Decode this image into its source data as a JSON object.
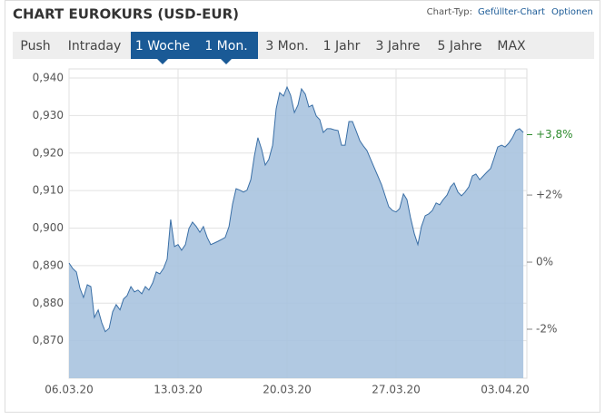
{
  "header": {
    "title": "CHART EUROKURS (USD-EUR)",
    "chart_type_label": "Chart-Typ:",
    "chart_type_link": "Gefüllter-Chart",
    "options_link": "Optionen"
  },
  "tabs": [
    {
      "label": "Push",
      "selected": false
    },
    {
      "label": "Intraday",
      "selected": false
    },
    {
      "label": "1 Woche",
      "selected": true
    },
    {
      "label": "1 Mon.",
      "selected": true
    },
    {
      "label": "3 Mon.",
      "selected": false
    },
    {
      "label": "1 Jahr",
      "selected": false
    },
    {
      "label": "3 Jahre",
      "selected": false
    },
    {
      "label": "5 Jahre",
      "selected": false
    },
    {
      "label": "MAX",
      "selected": false
    }
  ],
  "chart_data": {
    "type": "area",
    "color": "#3a6fa6",
    "fill": "#a9c3df",
    "grid": true,
    "x": [
      0,
      0.23,
      0.47,
      0.7,
      0.93,
      1.17,
      1.4,
      1.63,
      1.87,
      2.1,
      2.33,
      2.57,
      2.8,
      3.03,
      3.27,
      3.5,
      3.73,
      3.97,
      4.2,
      4.43,
      4.67,
      4.9,
      5.13,
      5.37,
      5.6,
      5.83,
      6.07,
      6.3,
      6.53,
      6.77,
      7,
      7.23,
      7.47,
      7.7,
      7.93,
      8.17,
      8.4,
      8.63,
      8.87,
      9.1,
      9.33,
      9.57,
      9.8,
      10.03,
      10.27,
      10.5,
      10.73,
      10.97,
      11.2,
      11.43,
      11.67,
      11.9,
      12.13,
      12.37,
      12.6,
      12.83,
      13.07,
      13.3,
      13.53,
      13.77,
      14,
      14.23,
      14.47,
      14.7,
      14.93,
      15.17,
      15.4,
      15.63,
      15.87,
      16.1,
      16.33,
      16.57,
      16.8,
      17.03,
      17.27,
      17.5,
      17.73,
      17.97,
      18.2,
      18.43,
      18.67,
      18.9,
      19.13,
      19.37,
      19.6,
      19.83,
      20.07,
      20.3,
      20.53,
      20.77,
      21,
      21.23,
      21.47,
      21.7,
      21.93,
      22.17,
      22.4,
      22.63,
      22.87,
      23.1,
      23.33,
      23.57,
      23.8,
      24.03,
      24.27,
      24.5,
      24.73,
      24.97,
      25.2,
      25.43,
      25.67,
      25.9,
      26.13,
      26.37,
      26.6,
      26.83,
      27.07,
      27.3,
      27.53,
      27.77,
      28,
      28.23,
      28.47,
      28.7,
      28.93,
      29.17
    ],
    "values": [
      0.8907,
      0.8893,
      0.8883,
      0.884,
      0.8815,
      0.8849,
      0.8844,
      0.8762,
      0.8782,
      0.8748,
      0.8724,
      0.8733,
      0.8777,
      0.8796,
      0.8782,
      0.8811,
      0.882,
      0.8844,
      0.883,
      0.8835,
      0.8825,
      0.8844,
      0.8835,
      0.8854,
      0.8883,
      0.8878,
      0.8893,
      0.8917,
      0.9023,
      0.8951,
      0.8956,
      0.8941,
      0.8956,
      0.8999,
      0.9016,
      0.9004,
      0.8989,
      0.9004,
      0.8975,
      0.8956,
      0.896,
      0.8965,
      0.897,
      0.8975,
      0.9004,
      0.9064,
      0.9105,
      0.9101,
      0.9096,
      0.9101,
      0.9129,
      0.9192,
      0.9241,
      0.9209,
      0.9168,
      0.9183,
      0.9221,
      0.9318,
      0.9361,
      0.9352,
      0.9376,
      0.9354,
      0.9308,
      0.9328,
      0.9371,
      0.9357,
      0.9323,
      0.9328,
      0.9299,
      0.9289,
      0.9255,
      0.9265,
      0.9265,
      0.9262,
      0.926,
      0.9221,
      0.9221,
      0.9284,
      0.9284,
      0.926,
      0.9233,
      0.9219,
      0.9207,
      0.9183,
      0.9161,
      0.9139,
      0.9115,
      0.9086,
      0.9057,
      0.9047,
      0.9043,
      0.9052,
      0.9091,
      0.9076,
      0.9028,
      0.8985,
      0.8956,
      0.9004,
      0.9033,
      0.9038,
      0.9047,
      0.9067,
      0.9062,
      0.9076,
      0.9088,
      0.911,
      0.912,
      0.9096,
      0.9086,
      0.9096,
      0.911,
      0.9139,
      0.9144,
      0.9129,
      0.9139,
      0.9149,
      0.9159,
      0.9187,
      0.9216,
      0.9221,
      0.9216,
      0.9226,
      0.9241,
      0.926,
      0.9265,
      0.9255
    ],
    "xlim": [
      0,
      29.4
    ],
    "xticks": [
      {
        "value": 0,
        "label": "06.03.20"
      },
      {
        "value": 7,
        "label": "13.03.20"
      },
      {
        "value": 14,
        "label": "20.03.20"
      },
      {
        "value": 21,
        "label": "27.03.20"
      },
      {
        "value": 28,
        "label": "03.04.20"
      }
    ],
    "ylim": [
      0.86,
      0.94
    ],
    "yticks": [
      {
        "value": 0.87,
        "label": "0,870"
      },
      {
        "value": 0.88,
        "label": "0,880"
      },
      {
        "value": 0.89,
        "label": "0,890"
      },
      {
        "value": 0.9,
        "label": "0,900"
      },
      {
        "value": 0.91,
        "label": "0,910"
      },
      {
        "value": 0.92,
        "label": "0,920"
      },
      {
        "value": 0.93,
        "label": "0,930"
      },
      {
        "value": 0.94,
        "label": "0,940"
      }
    ],
    "y2lim": [
      -3.46,
      5.49
    ],
    "y2ticks": [
      {
        "value": -2,
        "label": "-2%"
      },
      {
        "value": 0,
        "label": "0%"
      },
      {
        "value": 2,
        "label": "+2%"
      }
    ],
    "annotation": {
      "text": "+3,8%",
      "value": 3.8,
      "color": "#2e8b2e"
    }
  }
}
